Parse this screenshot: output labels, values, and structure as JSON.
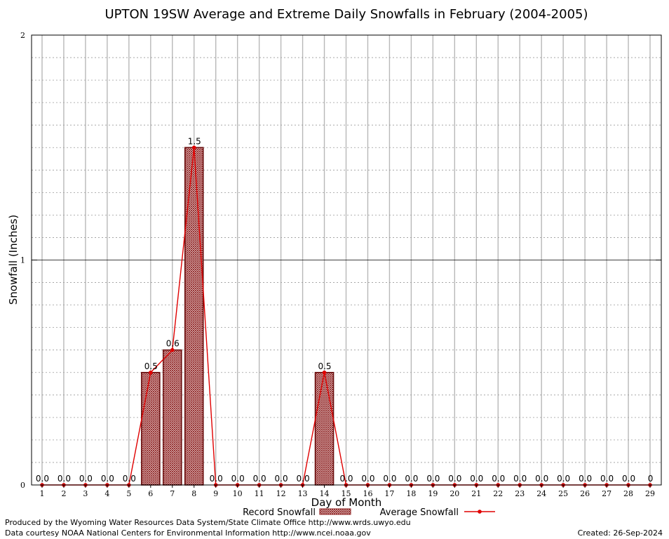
{
  "chart_data": {
    "type": "bar",
    "title": "UPTON 19SW Average and Extreme Daily Snowfalls in February (2004-2005)",
    "xlabel": "Day of Month",
    "ylabel": "Snowfall (Inches)",
    "ylim": [
      0,
      2
    ],
    "yticks": [
      "0",
      "1",
      "2"
    ],
    "categories": [
      "1",
      "2",
      "3",
      "4",
      "5",
      "6",
      "7",
      "8",
      "9",
      "10",
      "11",
      "12",
      "13",
      "14",
      "15",
      "16",
      "17",
      "18",
      "19",
      "20",
      "21",
      "22",
      "23",
      "24",
      "25",
      "26",
      "27",
      "28",
      "29"
    ],
    "series": [
      {
        "name": "Record Snowfall",
        "kind": "bar",
        "color": "#8b1a1a",
        "values": [
          0,
          0,
          0,
          0,
          0,
          0.5,
          0.6,
          1.5,
          0,
          0,
          0,
          0,
          0,
          0.5,
          0,
          0,
          0,
          0,
          0,
          0,
          0,
          0,
          0,
          0,
          0,
          0,
          0,
          0,
          0
        ]
      },
      {
        "name": "Average Snowfall",
        "kind": "line",
        "color": "#e00000",
        "values": [
          0,
          0,
          0,
          0,
          0,
          0.5,
          0.6,
          1.5,
          0,
          0,
          0,
          0,
          0,
          0.5,
          0,
          0,
          0,
          0,
          0,
          0,
          0,
          0,
          0,
          0,
          0,
          0,
          0,
          0,
          0
        ]
      }
    ],
    "data_labels": [
      "0.0",
      "0.0",
      "0.0",
      "0.0",
      "0.0",
      "0.5",
      "0.6",
      "1.5",
      "0.0",
      "0.0",
      "0.0",
      "0.0",
      "0.0",
      "0.5",
      "0.0",
      "0.0",
      "0.0",
      "0.0",
      "0.0",
      "0.0",
      "0.0",
      "0.0",
      "0.0",
      "0.0",
      "0.0",
      "0.0",
      "0.0",
      "0.0",
      "0"
    ],
    "grid": true,
    "legend_position": "bottom-center"
  },
  "footer": {
    "produced_by": "Produced by the Wyoming Water Resources Data System/State Climate Office http://www.wrds.uwyo.edu",
    "data_courtesy": "Data courtesy NOAA National Centers for Environmental Information http://www.ncei.noaa.gov",
    "created": "Created:  26-Sep-2024"
  }
}
